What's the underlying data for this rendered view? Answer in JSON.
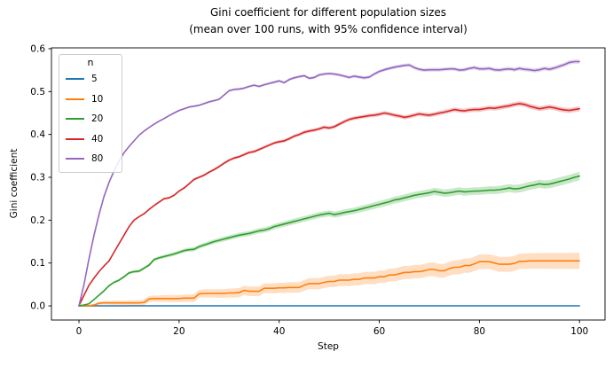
{
  "chart_data": {
    "type": "line",
    "title": "Gini coefficient for different population sizes",
    "subtitle": "(mean over 100 runs, with 95% confidence interval)",
    "xlabel": "Step",
    "ylabel": "Gini coefficient",
    "xlim": [
      -5.5,
      105.1
    ],
    "ylim": [
      -0.033,
      0.602
    ],
    "xticks": [
      0,
      20,
      40,
      60,
      80,
      100
    ],
    "yticks": [
      0.0,
      0.1,
      0.2,
      0.3,
      0.4,
      0.5,
      0.6
    ],
    "grid": false,
    "band_alpha": 0.25,
    "x_start": 0,
    "x_step": 1,
    "legend": {
      "title": "n",
      "position": "upper-left"
    },
    "series": [
      {
        "name": "5",
        "color": "#1f77b4",
        "ci_end_halfwidth": 0.001,
        "values": [
          0,
          0,
          0,
          0,
          0,
          0,
          0,
          0,
          0,
          0,
          0,
          0,
          0,
          0,
          0,
          0,
          0,
          0,
          0,
          0,
          0,
          0,
          0,
          0,
          0,
          0,
          0,
          0,
          0,
          0,
          0,
          0,
          0,
          0,
          0,
          0,
          0,
          0,
          0,
          0,
          0,
          0,
          0,
          0,
          0,
          0,
          0,
          0,
          0,
          0,
          0,
          0,
          0,
          0,
          0,
          0,
          0,
          0,
          0,
          0,
          0,
          0,
          0,
          0,
          0,
          0,
          0,
          0,
          0,
          0,
          0,
          0,
          0,
          0,
          0,
          0,
          0,
          0,
          0,
          0,
          0,
          0,
          0,
          0,
          0,
          0,
          0,
          0,
          0,
          0,
          0,
          0,
          0,
          0,
          0,
          0,
          0,
          0,
          0,
          0,
          0
        ]
      },
      {
        "name": "10",
        "color": "#ff7f0e",
        "ci_end_halfwidth": 0.019,
        "values": [
          0,
          0,
          0,
          0.002,
          0.006,
          0.007,
          0.007,
          0.007,
          0.007,
          0.007,
          0.007,
          0.007,
          0.007,
          0.008,
          0.016,
          0.017,
          0.017,
          0.017,
          0.017,
          0.017,
          0.017,
          0.018,
          0.018,
          0.018,
          0.028,
          0.029,
          0.029,
          0.029,
          0.029,
          0.029,
          0.03,
          0.03,
          0.031,
          0.036,
          0.034,
          0.034,
          0.034,
          0.041,
          0.041,
          0.041,
          0.042,
          0.042,
          0.043,
          0.043,
          0.043,
          0.048,
          0.052,
          0.052,
          0.052,
          0.055,
          0.057,
          0.057,
          0.06,
          0.06,
          0.06,
          0.062,
          0.062,
          0.065,
          0.065,
          0.065,
          0.068,
          0.068,
          0.072,
          0.072,
          0.075,
          0.078,
          0.078,
          0.08,
          0.08,
          0.082,
          0.085,
          0.085,
          0.082,
          0.082,
          0.087,
          0.09,
          0.09,
          0.094,
          0.094,
          0.098,
          0.103,
          0.103,
          0.103,
          0.1,
          0.097,
          0.097,
          0.097,
          0.099,
          0.104,
          0.104,
          0.105,
          0.105,
          0.105,
          0.105,
          0.105,
          0.105,
          0.105,
          0.105,
          0.105,
          0.105,
          0.105
        ]
      },
      {
        "name": "20",
        "color": "#2ca02c",
        "ci_end_halfwidth": 0.01,
        "values": [
          0,
          0.002,
          0.005,
          0.015,
          0.025,
          0.035,
          0.047,
          0.055,
          0.06,
          0.068,
          0.077,
          0.08,
          0.081,
          0.088,
          0.095,
          0.108,
          0.112,
          0.115,
          0.118,
          0.121,
          0.125,
          0.129,
          0.131,
          0.132,
          0.138,
          0.142,
          0.146,
          0.15,
          0.153,
          0.156,
          0.159,
          0.162,
          0.165,
          0.167,
          0.169,
          0.172,
          0.175,
          0.177,
          0.18,
          0.185,
          0.188,
          0.191,
          0.194,
          0.197,
          0.2,
          0.203,
          0.206,
          0.209,
          0.212,
          0.214,
          0.216,
          0.213,
          0.215,
          0.218,
          0.22,
          0.222,
          0.225,
          0.228,
          0.231,
          0.234,
          0.237,
          0.24,
          0.243,
          0.247,
          0.249,
          0.252,
          0.255,
          0.258,
          0.26,
          0.262,
          0.264,
          0.267,
          0.265,
          0.263,
          0.264,
          0.266,
          0.268,
          0.266,
          0.267,
          0.268,
          0.268,
          0.269,
          0.27,
          0.27,
          0.271,
          0.273,
          0.275,
          0.273,
          0.274,
          0.277,
          0.28,
          0.282,
          0.285,
          0.283,
          0.284,
          0.287,
          0.29,
          0.293,
          0.296,
          0.3,
          0.303
        ]
      },
      {
        "name": "40",
        "color": "#d62728",
        "ci_end_halfwidth": 0.006,
        "values": [
          0,
          0.025,
          0.048,
          0.065,
          0.08,
          0.093,
          0.105,
          0.125,
          0.145,
          0.165,
          0.185,
          0.2,
          0.208,
          0.215,
          0.225,
          0.234,
          0.242,
          0.25,
          0.252,
          0.258,
          0.268,
          0.275,
          0.285,
          0.295,
          0.3,
          0.305,
          0.312,
          0.318,
          0.325,
          0.333,
          0.34,
          0.345,
          0.348,
          0.353,
          0.358,
          0.36,
          0.365,
          0.37,
          0.375,
          0.38,
          0.383,
          0.385,
          0.39,
          0.396,
          0.4,
          0.405,
          0.408,
          0.41,
          0.413,
          0.417,
          0.415,
          0.418,
          0.424,
          0.43,
          0.435,
          0.438,
          0.44,
          0.442,
          0.444,
          0.445,
          0.447,
          0.45,
          0.448,
          0.445,
          0.443,
          0.44,
          0.442,
          0.445,
          0.448,
          0.446,
          0.445,
          0.447,
          0.45,
          0.452,
          0.455,
          0.458,
          0.456,
          0.455,
          0.457,
          0.458,
          0.458,
          0.46,
          0.462,
          0.461,
          0.463,
          0.465,
          0.467,
          0.47,
          0.472,
          0.47,
          0.466,
          0.463,
          0.46,
          0.462,
          0.464,
          0.462,
          0.459,
          0.457,
          0.456,
          0.458,
          0.46
        ]
      },
      {
        "name": "80",
        "color": "#9467bd",
        "ci_end_halfwidth": 0.005,
        "values": [
          0,
          0.05,
          0.11,
          0.165,
          0.213,
          0.255,
          0.288,
          0.315,
          0.338,
          0.357,
          0.372,
          0.385,
          0.398,
          0.408,
          0.416,
          0.424,
          0.431,
          0.437,
          0.444,
          0.45,
          0.456,
          0.46,
          0.464,
          0.466,
          0.468,
          0.472,
          0.476,
          0.479,
          0.482,
          0.492,
          0.502,
          0.505,
          0.506,
          0.508,
          0.512,
          0.515,
          0.512,
          0.516,
          0.519,
          0.522,
          0.525,
          0.521,
          0.528,
          0.532,
          0.535,
          0.537,
          0.531,
          0.533,
          0.539,
          0.541,
          0.542,
          0.541,
          0.539,
          0.536,
          0.533,
          0.536,
          0.534,
          0.532,
          0.534,
          0.541,
          0.547,
          0.551,
          0.554,
          0.557,
          0.559,
          0.561,
          0.562,
          0.556,
          0.552,
          0.55,
          0.551,
          0.551,
          0.551,
          0.552,
          0.553,
          0.553,
          0.55,
          0.551,
          0.554,
          0.556,
          0.553,
          0.553,
          0.554,
          0.551,
          0.55,
          0.552,
          0.553,
          0.551,
          0.554,
          0.552,
          0.551,
          0.549,
          0.551,
          0.554,
          0.552,
          0.555,
          0.559,
          0.563,
          0.568,
          0.57,
          0.57
        ]
      }
    ]
  }
}
